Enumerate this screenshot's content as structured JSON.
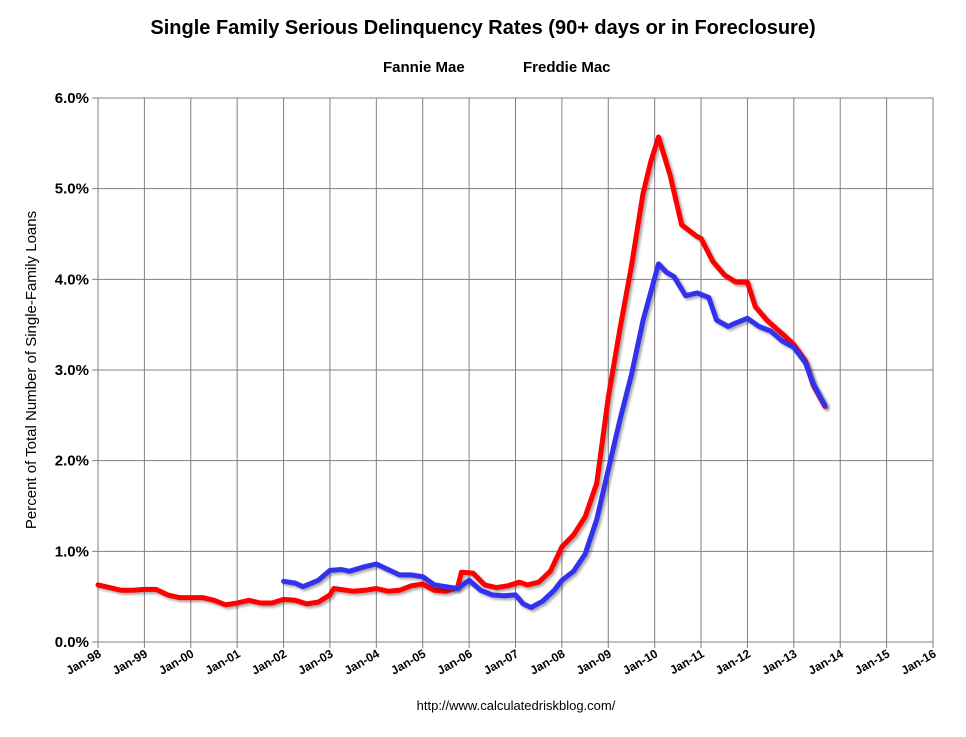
{
  "chart_data": {
    "type": "line",
    "title": "Single Family Serious Delinquency Rates (90+ days or in Foreclosure)",
    "xlabel": "",
    "ylabel": "Percent of Total Number of Single-Family Loans",
    "ylim": [
      0,
      6
    ],
    "xlim": [
      "1998-01",
      "2016-01"
    ],
    "y_ticks": [
      "0.0%",
      "1.0%",
      "2.0%",
      "3.0%",
      "4.0%",
      "5.0%",
      "6.0%"
    ],
    "x_ticks": [
      "Jan-98",
      "Jan-99",
      "Jan-00",
      "Jan-01",
      "Jan-02",
      "Jan-03",
      "Jan-04",
      "Jan-05",
      "Jan-06",
      "Jan-07",
      "Jan-08",
      "Jan-09",
      "Jan-10",
      "Jan-11",
      "Jan-12",
      "Jan-13",
      "Jan-14",
      "Jan-15",
      "Jan-16"
    ],
    "grid": true,
    "legend_placement": "top-center",
    "source_note": "http://www.calculatedriskblog.com/",
    "series": [
      {
        "name": "Fannie Mae",
        "color": "#ff0000",
        "points": [
          [
            "1998-01",
            0.63
          ],
          [
            "1998-04",
            0.6
          ],
          [
            "1998-07",
            0.57
          ],
          [
            "1998-10",
            0.57
          ],
          [
            "1999-01",
            0.58
          ],
          [
            "1999-04",
            0.58
          ],
          [
            "1999-07",
            0.52
          ],
          [
            "1999-10",
            0.49
          ],
          [
            "2000-01",
            0.49
          ],
          [
            "2000-04",
            0.49
          ],
          [
            "2000-07",
            0.46
          ],
          [
            "2000-10",
            0.41
          ],
          [
            "2001-01",
            0.43
          ],
          [
            "2001-04",
            0.46
          ],
          [
            "2001-07",
            0.43
          ],
          [
            "2001-10",
            0.43
          ],
          [
            "2002-01",
            0.47
          ],
          [
            "2002-04",
            0.46
          ],
          [
            "2002-07",
            0.42
          ],
          [
            "2002-10",
            0.44
          ],
          [
            "2003-01",
            0.52
          ],
          [
            "2003-02",
            0.59
          ],
          [
            "2003-07",
            0.56
          ],
          [
            "2003-10",
            0.57
          ],
          [
            "2004-01",
            0.59
          ],
          [
            "2004-04",
            0.56
          ],
          [
            "2004-07",
            0.57
          ],
          [
            "2004-10",
            0.62
          ],
          [
            "2005-01",
            0.64
          ],
          [
            "2005-04",
            0.57
          ],
          [
            "2005-07",
            0.56
          ],
          [
            "2005-10",
            0.6
          ],
          [
            "2005-11",
            0.77
          ],
          [
            "2006-02",
            0.76
          ],
          [
            "2006-05",
            0.63
          ],
          [
            "2006-08",
            0.6
          ],
          [
            "2006-11",
            0.62
          ],
          [
            "2007-02",
            0.66
          ],
          [
            "2007-04",
            0.63
          ],
          [
            "2007-07",
            0.66
          ],
          [
            "2007-10",
            0.78
          ],
          [
            "2008-01",
            1.05
          ],
          [
            "2008-04",
            1.18
          ],
          [
            "2008-07",
            1.38
          ],
          [
            "2008-10",
            1.75
          ],
          [
            "2009-01",
            2.7
          ],
          [
            "2009-04",
            3.45
          ],
          [
            "2009-07",
            4.15
          ],
          [
            "2009-10",
            4.95
          ],
          [
            "2009-12",
            5.3
          ],
          [
            "2010-02",
            5.57
          ],
          [
            "2010-05",
            5.15
          ],
          [
            "2010-08",
            4.6
          ],
          [
            "2010-12",
            4.47
          ],
          [
            "2011-01",
            4.45
          ],
          [
            "2011-04",
            4.2
          ],
          [
            "2011-07",
            4.05
          ],
          [
            "2011-10",
            3.97
          ],
          [
            "2012-01",
            3.97
          ],
          [
            "2012-03",
            3.7
          ],
          [
            "2012-06",
            3.55
          ],
          [
            "2012-10",
            3.4
          ],
          [
            "2013-01",
            3.28
          ],
          [
            "2013-04",
            3.1
          ],
          [
            "2013-06",
            2.83
          ],
          [
            "2013-09",
            2.6
          ]
        ]
      },
      {
        "name": "Freddie Mac",
        "color": "#3333ee",
        "points": [
          [
            "2002-01",
            0.67
          ],
          [
            "2002-04",
            0.65
          ],
          [
            "2002-06",
            0.61
          ],
          [
            "2002-10",
            0.68
          ],
          [
            "2003-01",
            0.79
          ],
          [
            "2003-04",
            0.8
          ],
          [
            "2003-06",
            0.78
          ],
          [
            "2003-10",
            0.83
          ],
          [
            "2004-01",
            0.86
          ],
          [
            "2004-04",
            0.8
          ],
          [
            "2004-07",
            0.74
          ],
          [
            "2004-10",
            0.74
          ],
          [
            "2005-01",
            0.72
          ],
          [
            "2005-04",
            0.63
          ],
          [
            "2005-07",
            0.61
          ],
          [
            "2005-10",
            0.59
          ],
          [
            "2006-01",
            0.68
          ],
          [
            "2006-04",
            0.57
          ],
          [
            "2006-07",
            0.52
          ],
          [
            "2006-10",
            0.51
          ],
          [
            "2007-01",
            0.52
          ],
          [
            "2007-03",
            0.42
          ],
          [
            "2007-05",
            0.38
          ],
          [
            "2007-08",
            0.45
          ],
          [
            "2007-11",
            0.57
          ],
          [
            "2008-01",
            0.68
          ],
          [
            "2008-04",
            0.78
          ],
          [
            "2008-07",
            0.97
          ],
          [
            "2008-10",
            1.35
          ],
          [
            "2009-01",
            1.9
          ],
          [
            "2009-04",
            2.45
          ],
          [
            "2009-07",
            2.95
          ],
          [
            "2009-10",
            3.55
          ],
          [
            "2010-02",
            4.17
          ],
          [
            "2010-04",
            4.08
          ],
          [
            "2010-06",
            4.03
          ],
          [
            "2010-09",
            3.82
          ],
          [
            "2010-12",
            3.85
          ],
          [
            "2011-03",
            3.8
          ],
          [
            "2011-05",
            3.55
          ],
          [
            "2011-08",
            3.48
          ],
          [
            "2011-10",
            3.52
          ],
          [
            "2012-01",
            3.57
          ],
          [
            "2012-04",
            3.48
          ],
          [
            "2012-07",
            3.43
          ],
          [
            "2012-10",
            3.32
          ],
          [
            "2013-01",
            3.25
          ],
          [
            "2013-04",
            3.08
          ],
          [
            "2013-06",
            2.85
          ],
          [
            "2013-09",
            2.61
          ]
        ]
      }
    ]
  }
}
